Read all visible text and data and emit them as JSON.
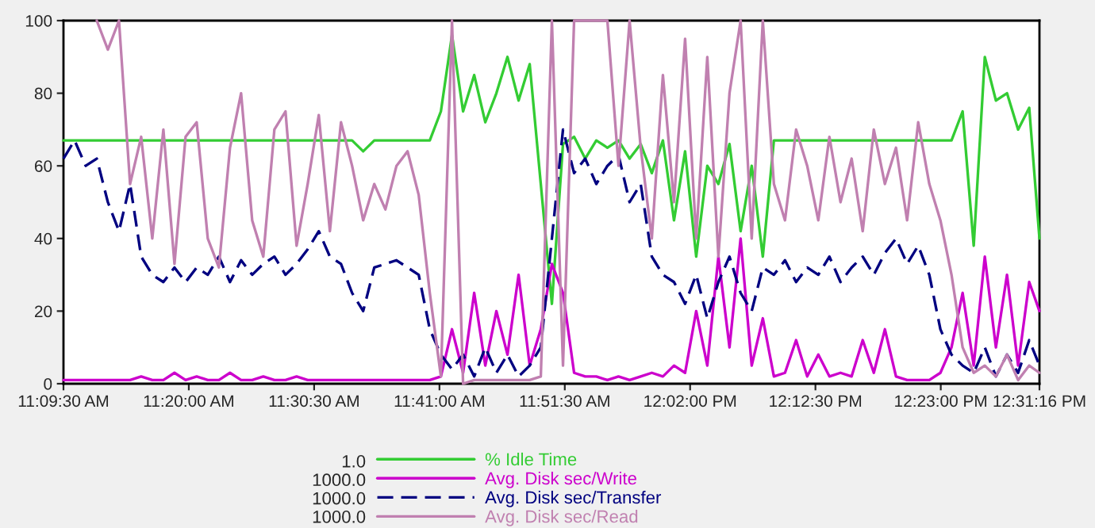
{
  "chart_data": {
    "type": "line",
    "x": [
      11.1583,
      11.1738,
      11.1893,
      11.2048,
      11.2203,
      11.2358,
      11.2513,
      11.2668,
      11.2823,
      11.2978,
      11.3133,
      11.3288,
      11.3443,
      11.3598,
      11.3753,
      11.3908,
      11.4063,
      11.4218,
      11.4373,
      11.4528,
      11.4683,
      11.4838,
      11.4993,
      11.5148,
      11.5303,
      11.5458,
      11.5613,
      11.5768,
      11.5923,
      11.6078,
      11.6233,
      11.6388,
      11.6543,
      11.6698,
      11.6853,
      11.7008,
      11.7163,
      11.7318,
      11.7473,
      11.7628,
      11.7783,
      11.7938,
      11.8093,
      11.8248,
      11.8403,
      11.8558,
      11.8713,
      11.8868,
      11.9023,
      11.9178,
      11.9333,
      11.9488,
      11.9643,
      11.9798,
      11.9953,
      12.0108,
      12.0263,
      12.0418,
      12.0573,
      12.0728,
      12.0883,
      12.1038,
      12.1193,
      12.1348,
      12.1503,
      12.1658,
      12.1813,
      12.1968,
      12.2123,
      12.2278,
      12.2433,
      12.2588,
      12.2743,
      12.2898,
      12.3053,
      12.3208,
      12.3363,
      12.3518,
      12.3673,
      12.3828,
      12.3983,
      12.4138,
      12.4293,
      12.4448,
      12.4603,
      12.4758,
      12.4913,
      12.5068,
      12.5211
    ],
    "series": [
      {
        "name": "% Idle Time",
        "color": "#33cc33",
        "line_style": "solid",
        "values": [
          67,
          67,
          67,
          67,
          67,
          67,
          67,
          67,
          67,
          67,
          67,
          67,
          67,
          67,
          67,
          67,
          67,
          67,
          67,
          67,
          67,
          67,
          67,
          67,
          67,
          67,
          67,
          64,
          67,
          67,
          67,
          67,
          67,
          67,
          75,
          96,
          75,
          85,
          72,
          80,
          90,
          78,
          88,
          55,
          22,
          66,
          68,
          62,
          67,
          65,
          67,
          62,
          66,
          58,
          67,
          45,
          64,
          35,
          60,
          55,
          66,
          42,
          60,
          35,
          67,
          67,
          67,
          67,
          67,
          67,
          67,
          67,
          67,
          67,
          67,
          67,
          67,
          67,
          67,
          67,
          67,
          75,
          38,
          90,
          78,
          80,
          70,
          76,
          40
        ]
      },
      {
        "name": "Avg. Disk sec/Write",
        "color": "#cc00cc",
        "line_style": "solid",
        "values": [
          1,
          1,
          1,
          1,
          1,
          1,
          1,
          2,
          1,
          1,
          3,
          1,
          2,
          1,
          1,
          3,
          1,
          1,
          2,
          1,
          1,
          2,
          1,
          1,
          1,
          1,
          1,
          1,
          1,
          1,
          1,
          1,
          1,
          1,
          2,
          15,
          3,
          25,
          5,
          20,
          8,
          30,
          5,
          15,
          33,
          25,
          3,
          2,
          2,
          1,
          2,
          1,
          2,
          3,
          2,
          5,
          3,
          20,
          5,
          35,
          10,
          40,
          5,
          18,
          2,
          3,
          12,
          2,
          8,
          2,
          3,
          2,
          12,
          3,
          15,
          2,
          1,
          1,
          1,
          3,
          10,
          25,
          5,
          35,
          10,
          30,
          5,
          28,
          20
        ]
      },
      {
        "name": "Avg. Disk sec/Transfer",
        "color": "#000080",
        "line_style": "dashed",
        "values": [
          62,
          67,
          60,
          62,
          50,
          42,
          55,
          35,
          30,
          28,
          32,
          28,
          32,
          30,
          35,
          28,
          34,
          30,
          33,
          35,
          30,
          33,
          37,
          42,
          35,
          33,
          25,
          20,
          32,
          33,
          34,
          32,
          30,
          15,
          8,
          4,
          8,
          2,
          10,
          3,
          8,
          2,
          5,
          10,
          40,
          70,
          58,
          62,
          55,
          60,
          63,
          50,
          55,
          35,
          30,
          28,
          22,
          30,
          18,
          28,
          35,
          25,
          20,
          32,
          30,
          34,
          28,
          32,
          30,
          35,
          28,
          32,
          35,
          30,
          36,
          40,
          33,
          38,
          30,
          15,
          8,
          5,
          3,
          10,
          2,
          8,
          3,
          12,
          5
        ]
      },
      {
        "name": "Avg. Disk sec/Read",
        "color": "#c080b0",
        "line_style": "solid",
        "values": [
          null,
          null,
          null,
          100,
          92,
          100,
          55,
          68,
          40,
          70,
          33,
          68,
          72,
          40,
          32,
          65,
          80,
          45,
          35,
          70,
          75,
          38,
          55,
          74,
          42,
          72,
          60,
          45,
          55,
          48,
          60,
          64,
          52,
          25,
          2,
          100,
          0,
          1,
          1,
          1,
          1,
          1,
          1,
          2,
          100,
          5,
          100,
          100,
          100,
          100,
          60,
          100,
          65,
          40,
          85,
          50,
          95,
          40,
          90,
          35,
          80,
          100,
          40,
          100,
          55,
          45,
          70,
          60,
          45,
          68,
          50,
          62,
          42,
          70,
          55,
          65,
          45,
          72,
          55,
          45,
          30,
          10,
          3,
          5,
          2,
          8,
          1,
          5,
          3
        ]
      }
    ],
    "xlim": [
      11.1583,
      12.5211
    ],
    "xticks": [
      {
        "value": 11.1583,
        "label": "11:09:30 AM"
      },
      {
        "value": 11.3333,
        "label": "11:20:00 AM"
      },
      {
        "value": 11.5083,
        "label": "11:30:30 AM"
      },
      {
        "value": 11.6833,
        "label": "11:41:00 AM"
      },
      {
        "value": 11.8583,
        "label": "11:51:30 AM"
      },
      {
        "value": 12.0333,
        "label": "12:02:00 PM"
      },
      {
        "value": 12.2083,
        "label": "12:12:30 PM"
      },
      {
        "value": 12.3833,
        "label": "12:23:00 PM"
      },
      {
        "value": 12.5211,
        "label": "12:31:16 PM"
      }
    ],
    "ylim": [
      0,
      100
    ],
    "yticks": [
      0,
      20,
      40,
      60,
      80,
      100
    ],
    "grid": false,
    "legend": "bottom",
    "annotations": [
      "1.0",
      "1000.0",
      "1000.0",
      "1000.0"
    ]
  }
}
